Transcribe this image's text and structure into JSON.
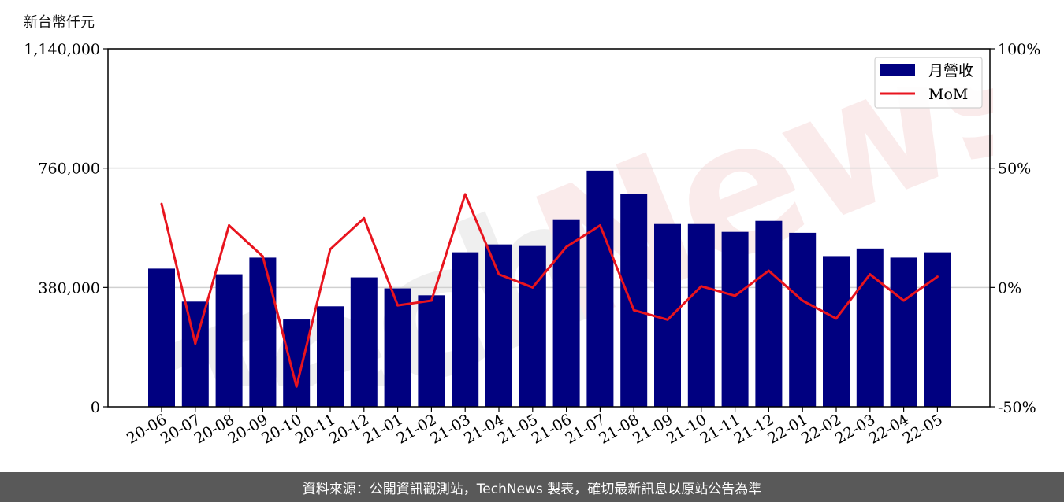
{
  "unit_label": "新台幣仟元",
  "footer": "資料來源：公開資訊觀測站，TechNews 製表，確切最新訊息以原站公告為準",
  "watermark_text": "TechNews",
  "colors": {
    "bar": "#000080",
    "line": "#e8141e",
    "grid": "#d0d0d0",
    "footer_bg": "#595959"
  },
  "chart_data": {
    "type": "bar",
    "categories": [
      "20-06",
      "20-07",
      "20-08",
      "20-09",
      "20-10",
      "20-11",
      "20-12",
      "21-01",
      "21-02",
      "21-03",
      "21-04",
      "21-05",
      "21-06",
      "21-07",
      "21-08",
      "21-09",
      "21-10",
      "21-11",
      "21-12",
      "22-01",
      "22-02",
      "22-03",
      "22-04",
      "22-05"
    ],
    "series": [
      {
        "name": "月營收",
        "axis": "left",
        "type": "bar",
        "values": [
          440000,
          335000,
          422000,
          475000,
          278000,
          320000,
          412000,
          377000,
          355000,
          492000,
          517000,
          512000,
          597000,
          752000,
          677000,
          582000,
          582000,
          557000,
          592000,
          554000,
          480000,
          504000,
          475000,
          492000
        ]
      },
      {
        "name": "MoM",
        "axis": "right",
        "type": "line",
        "values": [
          35,
          -23.5,
          26,
          13,
          -41.5,
          16,
          29,
          -7.5,
          -5.5,
          39,
          5.5,
          0,
          17,
          26,
          -9.5,
          -13.5,
          0.5,
          -3.5,
          7,
          -5.5,
          -13,
          5.5,
          -5.5,
          4.5
        ]
      }
    ],
    "y_left": {
      "ylim": [
        0,
        1140000
      ],
      "ticks": [
        0,
        380000,
        760000,
        1140000
      ],
      "tick_labels": [
        "0",
        "380,000",
        "760,000",
        "1,140,000"
      ]
    },
    "y_right": {
      "ylim": [
        -50,
        100
      ],
      "ticks": [
        -50,
        0,
        50,
        100
      ],
      "tick_labels": [
        "-50%",
        "0%",
        "50%",
        "100%"
      ]
    },
    "grid": true,
    "legend_position": "top-right"
  }
}
